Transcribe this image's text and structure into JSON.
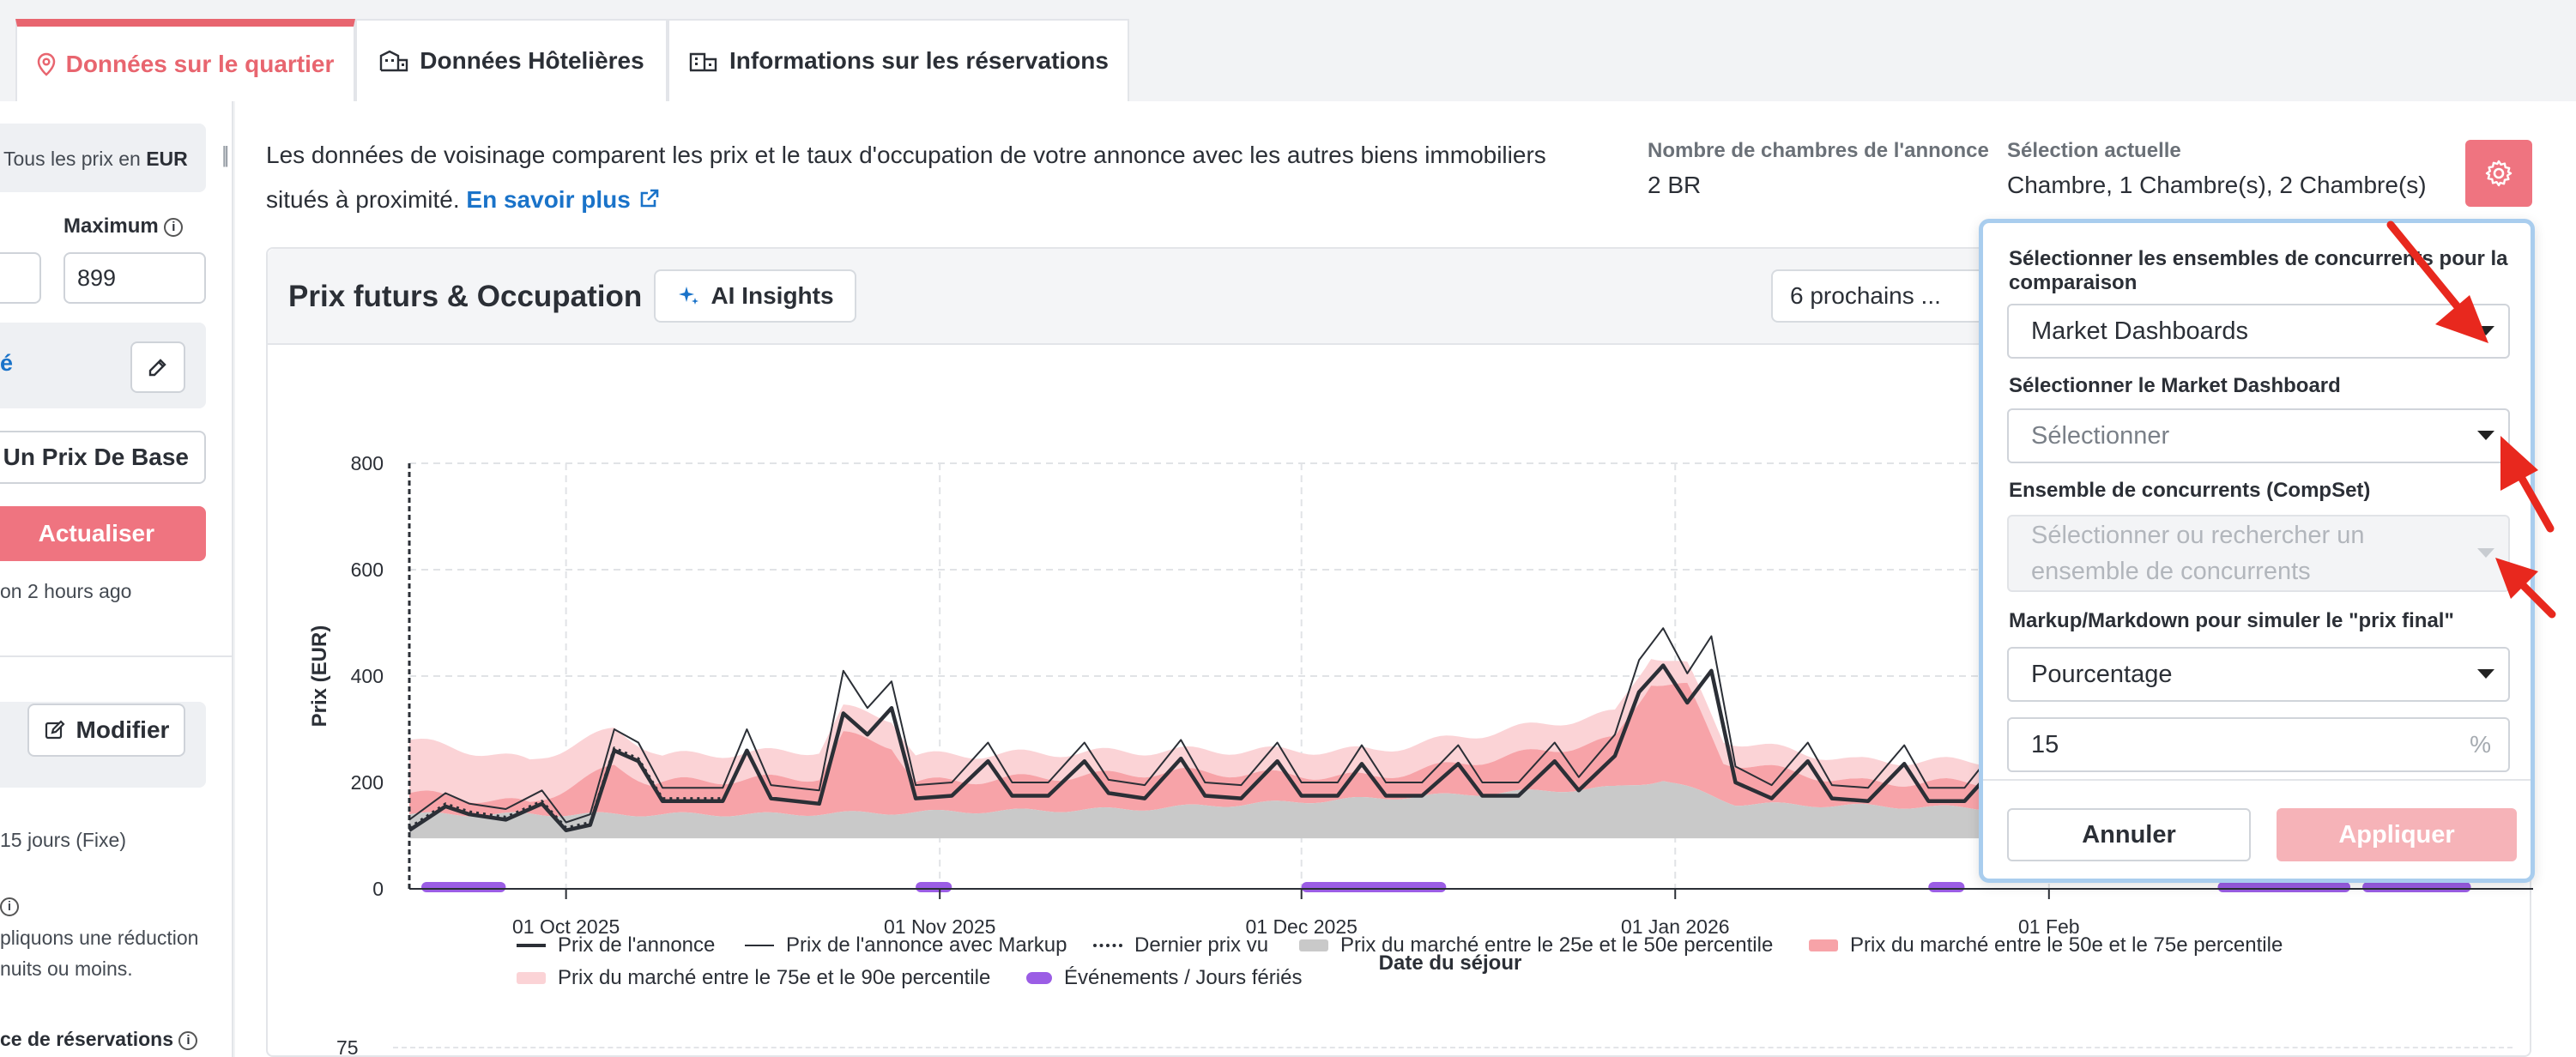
{
  "tabs": [
    {
      "label": "Données sur le quartier",
      "icon": "map-pin-icon",
      "active": true
    },
    {
      "label": "Données Hôtelières",
      "icon": "hotel-icon",
      "active": false
    },
    {
      "label": "Informations sur les réservations",
      "icon": "buildings-icon",
      "active": false
    }
  ],
  "sidebar": {
    "currency_prefix": "Tous les prix en",
    "currency": "EUR",
    "max_label": "Maximum",
    "max_value": "899",
    "link_fragment": "é",
    "base_price_button": "r Un Prix De Base",
    "refresh_button": "Actualiser",
    "updated_text": "on 2 hours ago",
    "modify_button": "Modifier",
    "duration_text": "15 jours (Fixe)",
    "discount_text_1": "pliquons une réduction",
    "discount_text_2": "nuits ou moins.",
    "bookings_label": "ce de réservations"
  },
  "main": {
    "description": "Les données de voisinage comparent les prix et le taux d'occupation de votre annonce avec les autres biens immobiliers situés à proximité.",
    "learn_more": "En savoir plus",
    "rooms_label": "Nombre de chambres de l'annonce",
    "rooms_value": "2 BR",
    "selection_label": "Sélection actuelle",
    "selection_value": "Chambre,  1 Chambre(s),  2 Chambre(s)"
  },
  "chart_card": {
    "title": "Prix futurs & Occupation",
    "ai_button": "AI Insights",
    "period_select": "6 prochains ...",
    "next_chart_tick": "75"
  },
  "popup": {
    "compset_group_label": "Sélectionner les ensembles de concurrents pour la comparaison",
    "compset_group_value": "Market Dashboards",
    "dashboard_label": "Sélectionner le Market Dashboard",
    "dashboard_placeholder": "Sélectionner",
    "compset_label": "Ensemble de concurrents (CompSet)",
    "compset_placeholder": "Sélectionner ou rechercher un ensemble de concurrents",
    "markup_label": "Markup/Markdown pour simuler le \"prix final\"",
    "markup_type": "Pourcentage",
    "markup_value": "15",
    "markup_unit": "%",
    "cancel": "Annuler",
    "apply": "Appliquer"
  },
  "colors": {
    "accent": "#ef7480",
    "tab_active": "#e8656f",
    "link": "#1a73c9",
    "band_25_50": "#c9c9c9",
    "band_50_75": "#f7a3a8",
    "band_75_90": "#fbd3d6",
    "events": "#9b5de5",
    "popup_border": "#a9cdee",
    "annotation_arrow": "#e8281e"
  },
  "chart_data": {
    "type": "area",
    "xlabel": "Date du séjour",
    "ylabel": "Prix (EUR)",
    "ylim": [
      0,
      800
    ],
    "yticks": [
      0,
      200,
      400,
      600,
      800
    ],
    "xticks": [
      "01 Oct 2025",
      "01 Nov 2025",
      "01 Dec 2025",
      "01 Jan 2026",
      "01 Feb"
    ],
    "x_start": "2025-09-18",
    "grid": true,
    "legend_position": "bottom",
    "legend": [
      {
        "label": "Prix de l'annonce",
        "style": "line-thick"
      },
      {
        "label": "Prix de l'annonce avec Markup",
        "style": "line-thin"
      },
      {
        "label": "Dernier prix vu",
        "style": "dotted"
      },
      {
        "label": "Prix du marché entre le 25e et le 50e percentile",
        "style": "band-gray"
      },
      {
        "label": "Prix du marché entre le 50e et le 75e percentile",
        "style": "band-red"
      },
      {
        "label": "Prix du marché entre le 75e et le 90e percentile",
        "style": "band-pink"
      },
      {
        "label": "Événements / Jours fériés",
        "style": "event"
      }
    ],
    "series": [
      {
        "name": "Prix de l'annonce",
        "points": [
          [
            0,
            110
          ],
          [
            3,
            155
          ],
          [
            5,
            140
          ],
          [
            8,
            130
          ],
          [
            11,
            160
          ],
          [
            13,
            110
          ],
          [
            15,
            120
          ],
          [
            17,
            260
          ],
          [
            19,
            240
          ],
          [
            21,
            165
          ],
          [
            24,
            165
          ],
          [
            26,
            165
          ],
          [
            28,
            260
          ],
          [
            30,
            170
          ],
          [
            34,
            160
          ],
          [
            36,
            330
          ],
          [
            38,
            290
          ],
          [
            40,
            340
          ],
          [
            42,
            170
          ],
          [
            45,
            175
          ],
          [
            48,
            240
          ],
          [
            50,
            175
          ],
          [
            53,
            175
          ],
          [
            56,
            240
          ],
          [
            58,
            180
          ],
          [
            61,
            170
          ],
          [
            64,
            245
          ],
          [
            66,
            175
          ],
          [
            69,
            170
          ],
          [
            72,
            240
          ],
          [
            74,
            175
          ],
          [
            77,
            175
          ],
          [
            79,
            235
          ],
          [
            81,
            175
          ],
          [
            84,
            175
          ],
          [
            87,
            235
          ],
          [
            89,
            175
          ],
          [
            92,
            175
          ],
          [
            95,
            240
          ],
          [
            97,
            185
          ],
          [
            100,
            250
          ],
          [
            102,
            370
          ],
          [
            104,
            420
          ],
          [
            106,
            350
          ],
          [
            108,
            410
          ],
          [
            110,
            200
          ],
          [
            113,
            170
          ],
          [
            116,
            240
          ],
          [
            118,
            170
          ],
          [
            121,
            165
          ],
          [
            124,
            235
          ],
          [
            126,
            165
          ],
          [
            129,
            165
          ],
          [
            132,
            240
          ],
          [
            135,
            175
          ]
        ]
      },
      {
        "name": "Prix de l'annonce avec Markup",
        "points": [
          [
            0,
            130
          ],
          [
            3,
            180
          ],
          [
            5,
            160
          ],
          [
            8,
            150
          ],
          [
            11,
            185
          ],
          [
            13,
            125
          ],
          [
            15,
            140
          ],
          [
            17,
            300
          ],
          [
            19,
            275
          ],
          [
            21,
            190
          ],
          [
            24,
            190
          ],
          [
            26,
            190
          ],
          [
            28,
            300
          ],
          [
            30,
            195
          ],
          [
            34,
            185
          ],
          [
            36,
            410
          ],
          [
            38,
            340
          ],
          [
            40,
            390
          ],
          [
            42,
            195
          ],
          [
            45,
            200
          ],
          [
            48,
            275
          ],
          [
            50,
            200
          ],
          [
            53,
            200
          ],
          [
            56,
            275
          ],
          [
            58,
            205
          ],
          [
            61,
            195
          ],
          [
            64,
            280
          ],
          [
            66,
            200
          ],
          [
            69,
            195
          ],
          [
            72,
            275
          ],
          [
            74,
            200
          ],
          [
            77,
            200
          ],
          [
            79,
            270
          ],
          [
            81,
            200
          ],
          [
            84,
            200
          ],
          [
            87,
            270
          ],
          [
            89,
            200
          ],
          [
            92,
            200
          ],
          [
            95,
            275
          ],
          [
            97,
            210
          ],
          [
            100,
            290
          ],
          [
            102,
            430
          ],
          [
            104,
            490
          ],
          [
            106,
            405
          ],
          [
            108,
            475
          ],
          [
            110,
            230
          ],
          [
            113,
            195
          ],
          [
            116,
            275
          ],
          [
            118,
            195
          ],
          [
            121,
            190
          ],
          [
            124,
            270
          ],
          [
            126,
            190
          ],
          [
            129,
            190
          ],
          [
            132,
            275
          ],
          [
            135,
            200
          ]
        ]
      },
      {
        "name": "Prix du marché entre le 25e et le 50e percentile",
        "lower": 95,
        "upper_points": [
          [
            0,
            140
          ],
          [
            30,
            140
          ],
          [
            60,
            150
          ],
          [
            100,
            190
          ],
          [
            104,
            205
          ],
          [
            110,
            160
          ],
          [
            135,
            150
          ]
        ]
      },
      {
        "name": "Prix du marché entre le 50e et le 75e percentile",
        "upper_points": [
          [
            0,
            180
          ],
          [
            10,
            160
          ],
          [
            17,
            230
          ],
          [
            20,
            200
          ],
          [
            34,
            210
          ],
          [
            36,
            290
          ],
          [
            40,
            270
          ],
          [
            42,
            200
          ],
          [
            64,
            220
          ],
          [
            80,
            210
          ],
          [
            100,
            280
          ],
          [
            103,
            390
          ],
          [
            106,
            380
          ],
          [
            109,
            240
          ],
          [
            120,
            200
          ],
          [
            135,
            200
          ]
        ]
      },
      {
        "name": "Prix du marché entre le 75e et le 90e percentile",
        "upper_points": [
          [
            0,
            280
          ],
          [
            10,
            240
          ],
          [
            17,
            300
          ],
          [
            21,
            250
          ],
          [
            34,
            260
          ],
          [
            36,
            340
          ],
          [
            40,
            320
          ],
          [
            42,
            250
          ],
          [
            64,
            260
          ],
          [
            80,
            260
          ],
          [
            100,
            330
          ],
          [
            103,
            440
          ],
          [
            106,
            420
          ],
          [
            109,
            280
          ],
          [
            120,
            240
          ],
          [
            135,
            240
          ]
        ]
      },
      {
        "name": "Événements / Jours fériés",
        "ranges": [
          [
            1,
            8
          ],
          [
            42,
            45
          ],
          [
            74,
            86
          ],
          [
            126,
            129
          ],
          [
            150,
            161
          ],
          [
            162,
            171
          ]
        ]
      }
    ]
  }
}
